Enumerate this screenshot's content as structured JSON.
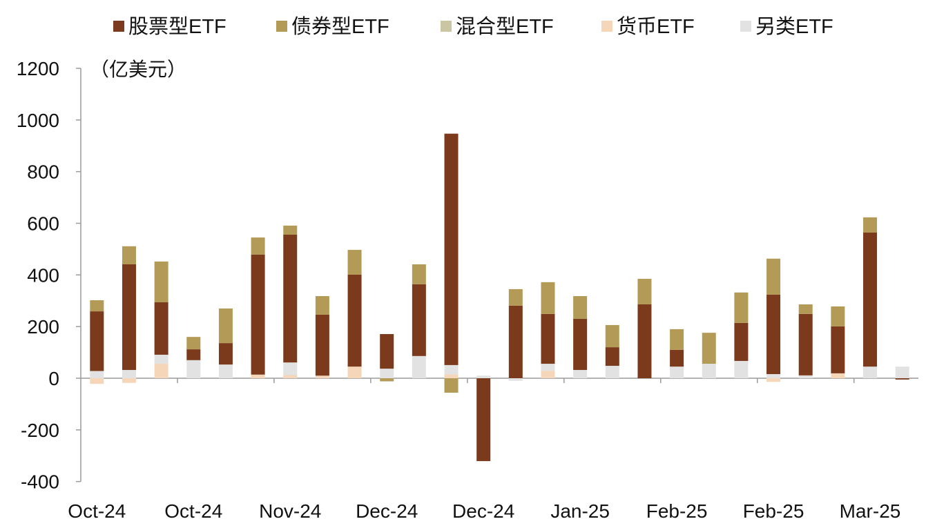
{
  "chart_data": {
    "type": "bar",
    "stacked": true,
    "unit_label": "（亿美元）",
    "ylim": [
      -400,
      1200
    ],
    "yticks": [
      1200,
      1000,
      800,
      600,
      400,
      200,
      0,
      -200,
      -400
    ],
    "x_tick_labels": [
      "Oct-24",
      "Oct-24",
      "Nov-24",
      "Dec-24",
      "Dec-24",
      "Jan-25",
      "Feb-25",
      "Feb-25",
      "Mar-25"
    ],
    "legend_position": "top",
    "grid": false,
    "series": [
      {
        "name": "股票型ETF",
        "color": "#7B3A1B",
        "values": [
          231,
          409,
          203,
          42,
          83,
          465,
          495,
          236,
          356,
          134,
          278,
          896,
          -321,
          281,
          193,
          198,
          72,
          286,
          65,
          0,
          147,
          308,
          238,
          182,
          519,
          -5
        ]
      },
      {
        "name": "债券型ETF",
        "color": "#B39A57",
        "values": [
          43,
          70,
          158,
          48,
          134,
          66,
          35,
          72,
          96,
          -12,
          77,
          -56,
          0,
          64,
          123,
          88,
          86,
          99,
          80,
          120,
          118,
          139,
          37,
          77,
          59,
          0
        ]
      },
      {
        "name": "混合型ETF",
        "color": "#CBC6A2",
        "values": [
          0,
          0,
          0,
          0,
          0,
          0,
          0,
          0,
          0,
          0,
          0,
          0,
          0,
          0,
          0,
          0,
          0,
          0,
          0,
          0,
          0,
          0,
          0,
          0,
          0,
          0
        ]
      },
      {
        "name": "货币ETF",
        "color": "#F6D6B8",
        "values": [
          -22,
          -18,
          56,
          0,
          0,
          14,
          12,
          10,
          45,
          0,
          0,
          15,
          0,
          0,
          29,
          0,
          0,
          0,
          0,
          0,
          0,
          -14,
          0,
          19,
          0,
          0
        ]
      },
      {
        "name": "另类ETF",
        "color": "#E2E2E2",
        "values": [
          28,
          32,
          35,
          70,
          53,
          0,
          49,
          0,
          0,
          37,
          86,
          36,
          10,
          -10,
          27,
          32,
          48,
          0,
          45,
          56,
          67,
          16,
          11,
          0,
          45,
          45
        ]
      }
    ]
  }
}
